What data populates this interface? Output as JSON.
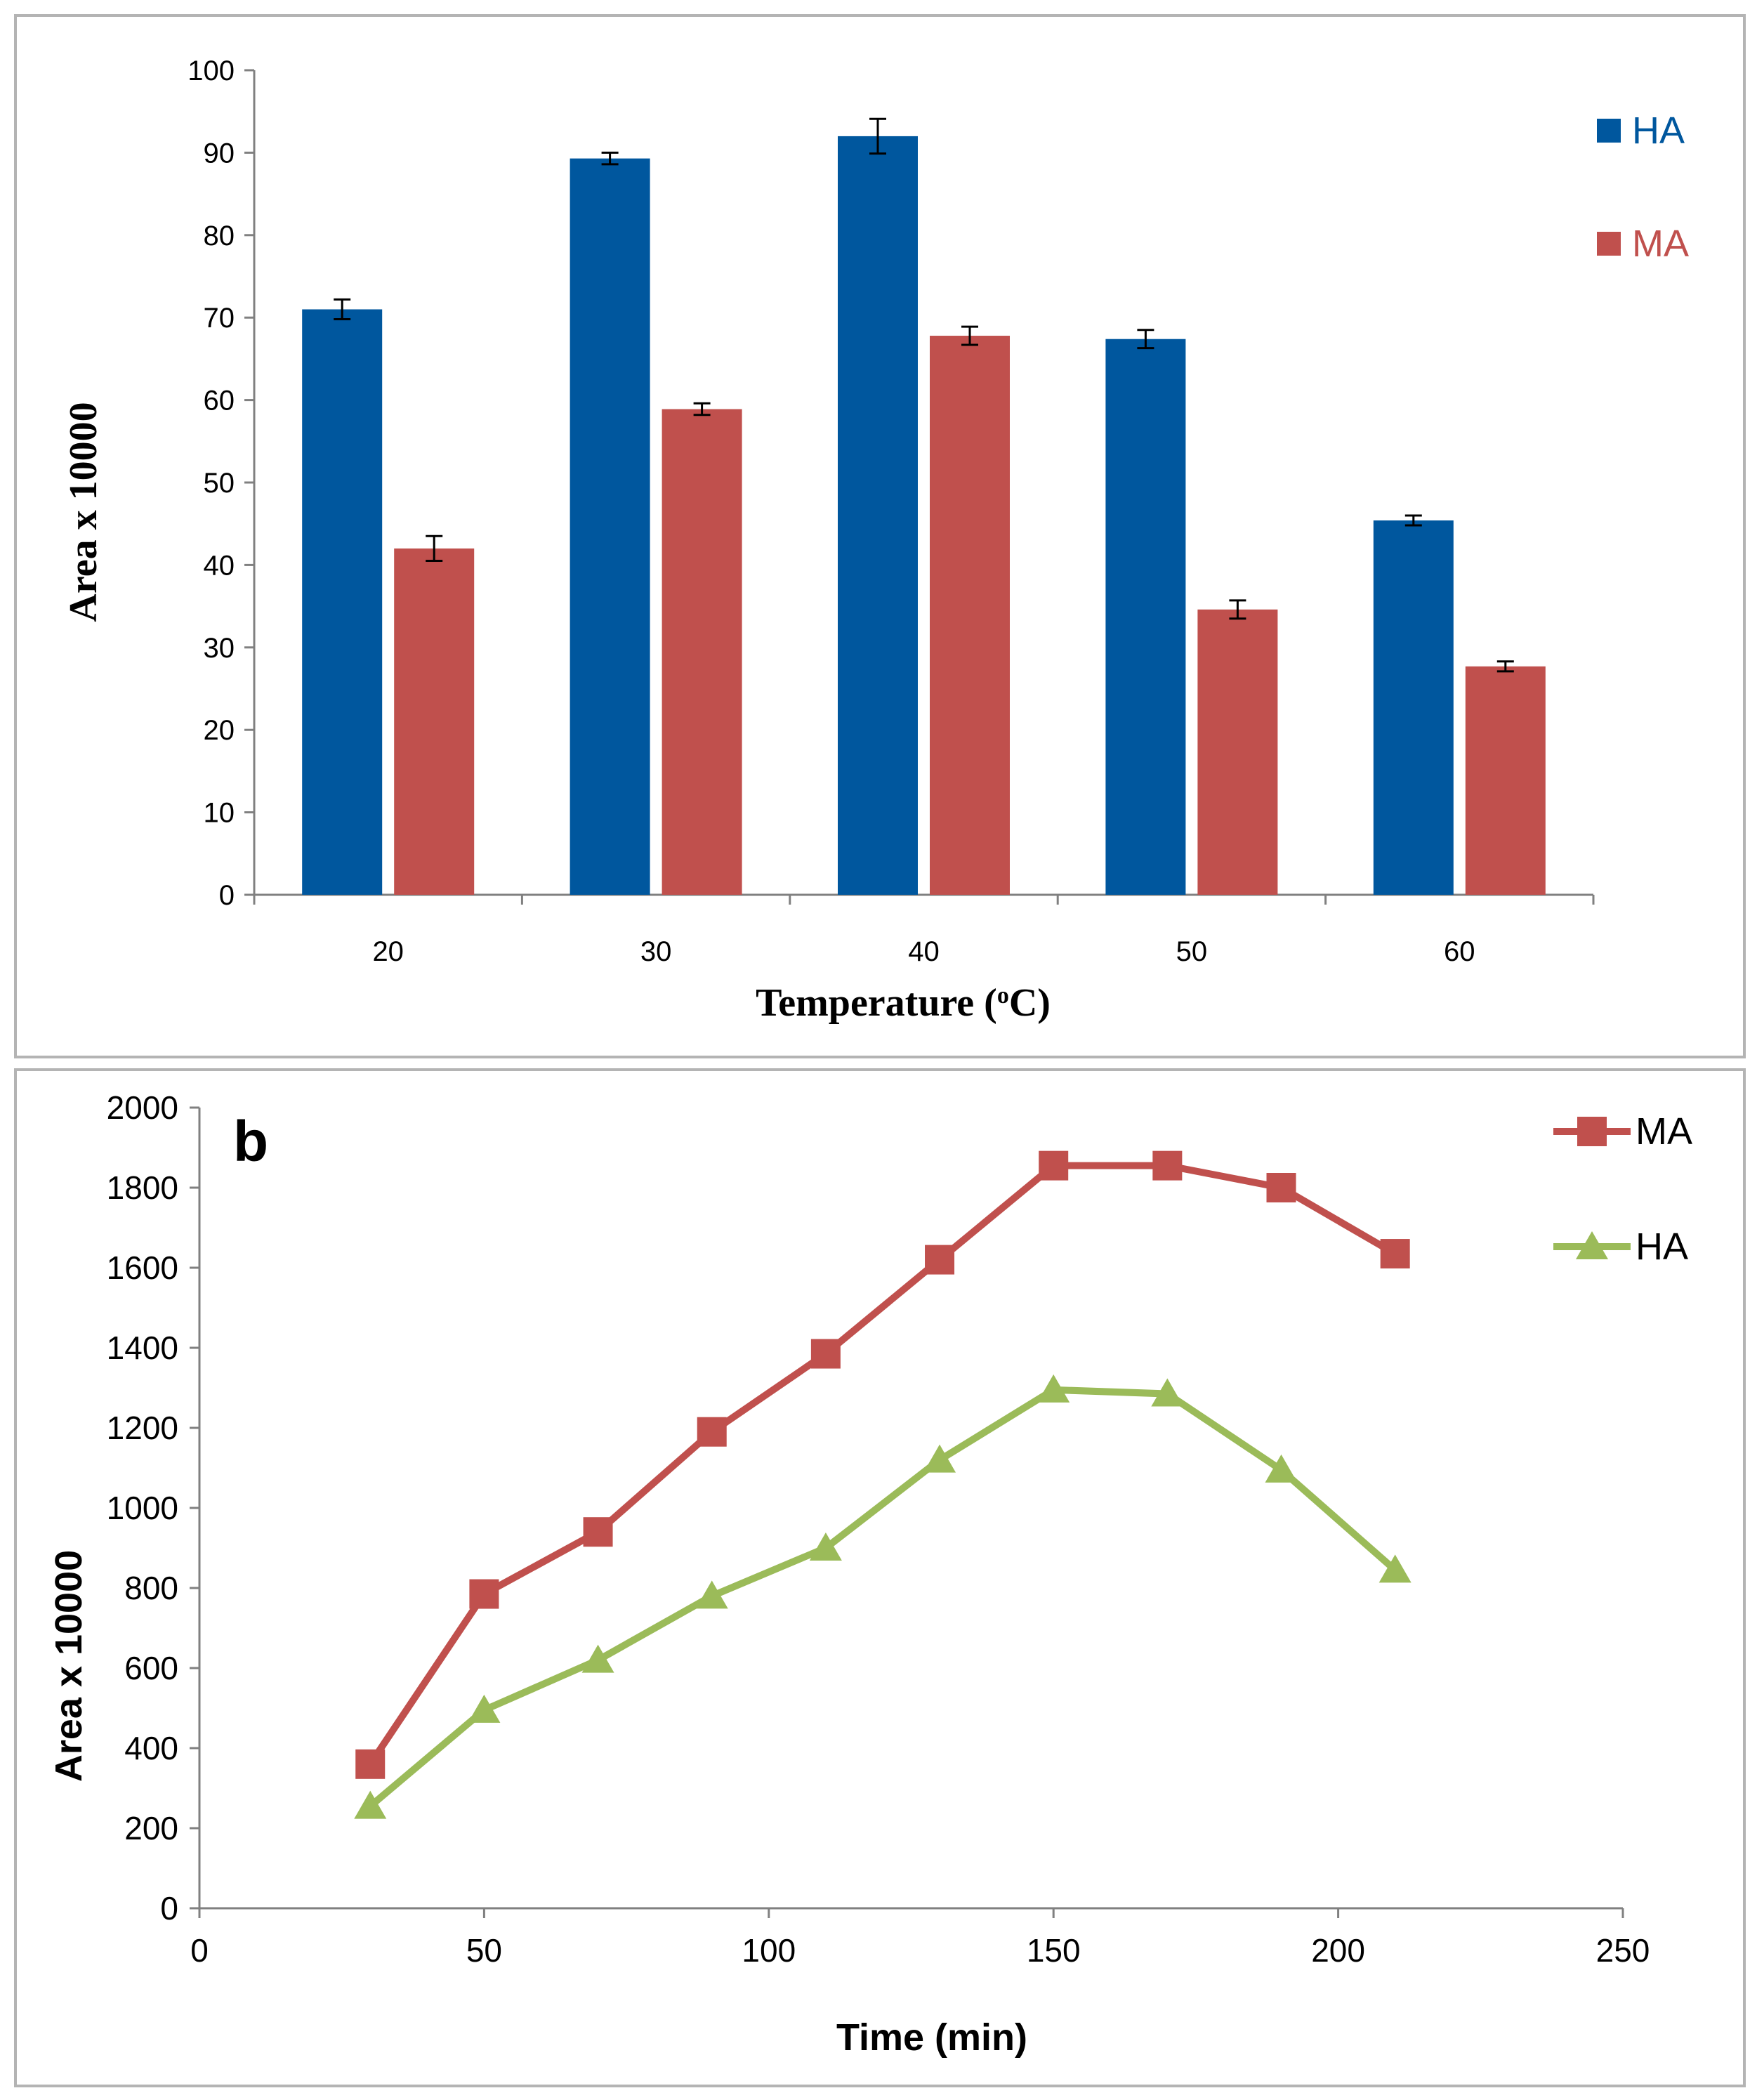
{
  "colors": {
    "ha_bar": "#00579e",
    "ma_bar": "#c0504d",
    "ma_line": "#c0504d",
    "ha_line": "#9bbb59",
    "axis": "#808080",
    "border": "#b4b4b4"
  },
  "chart_data": [
    {
      "type": "bar",
      "title": "",
      "xlabel": "Temperature (°C)",
      "xlabel_main": "Temperature (",
      "xlabel_degree": "o",
      "xlabel_unit": "C)",
      "ylabel": "Area  x 10000",
      "ylim": [
        0,
        100
      ],
      "yticks": [
        "0",
        "10",
        "20",
        "30",
        "40",
        "50",
        "60",
        "70",
        "80",
        "90",
        "100"
      ],
      "categories": [
        "20",
        "30",
        "40",
        "50",
        "60"
      ],
      "series": [
        {
          "name": "HA",
          "values": [
            71,
            89.3,
            92,
            67.4,
            45.4
          ],
          "errors": [
            1.2,
            0.7,
            2.1,
            1.1,
            0.6
          ]
        },
        {
          "name": "MA",
          "values": [
            42,
            58.9,
            67.8,
            34.6,
            27.7
          ],
          "errors": [
            1.5,
            0.7,
            1.1,
            1.1,
            0.6
          ]
        }
      ],
      "legend": [
        "HA",
        "MA"
      ],
      "legend_position": "top-right",
      "grid": false
    },
    {
      "type": "line",
      "panel_label": "b",
      "title": "",
      "xlabel": "Time (min)",
      "ylabel": "Area  x 10000",
      "xlim": [
        0,
        250
      ],
      "ylim": [
        0,
        2000
      ],
      "xticks": [
        "0",
        "50",
        "100",
        "150",
        "200",
        "250"
      ],
      "yticks": [
        "0",
        "200",
        "400",
        "600",
        "800",
        "1000",
        "1200",
        "1400",
        "1600",
        "1800",
        "2000"
      ],
      "x": [
        30,
        50,
        70,
        90,
        110,
        130,
        150,
        170,
        190,
        210
      ],
      "series": [
        {
          "name": "MA",
          "marker": "square",
          "values": [
            360,
            785,
            940,
            1190,
            1385,
            1620,
            1855,
            1855,
            1800,
            1635
          ]
        },
        {
          "name": "HA",
          "marker": "triangle",
          "values": [
            255,
            495,
            620,
            780,
            900,
            1120,
            1295,
            1285,
            1095,
            845
          ]
        }
      ],
      "legend": [
        "MA",
        "HA"
      ],
      "legend_position": "top-right",
      "grid": false
    }
  ]
}
